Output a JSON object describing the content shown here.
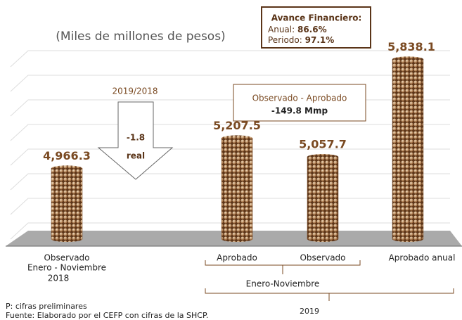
{
  "chart_data": {
    "type": "bar",
    "subtitle": "(Miles de millones de pesos)",
    "categories": [
      "Observado",
      "Aprobado",
      "Observado",
      "Aprobado anual"
    ],
    "values": [
      4966.3,
      5207.5,
      5057.7,
      5838.1
    ],
    "value_labels": [
      "4,966.3",
      "5,207.5",
      "5,057.7",
      "5,838.1"
    ],
    "color": "#7a4a22",
    "ylim": [
      4400,
      6000
    ],
    "groups": [
      {
        "labels": [
          "Enero - Noviembre",
          "2018"
        ]
      },
      {
        "labels": [
          "Enero-Noviembre",
          "2019"
        ]
      }
    ],
    "financial_box": {
      "title": "Avance Financiero:",
      "annual_label": "Anual:",
      "annual_value": "86.6%",
      "period_label": "Periodo:",
      "period_value": "97.1%"
    },
    "change_arrow": {
      "label": "2019/2018",
      "value": "-1.8",
      "unit": "real"
    },
    "difference_box": {
      "label": "Observado - Aprobado",
      "value": "-149.8 Mmp"
    },
    "notes": [
      "P: cifras preliminares",
      "Fuente: Elaborado por el CEFP con cifras de la SHCP."
    ]
  }
}
